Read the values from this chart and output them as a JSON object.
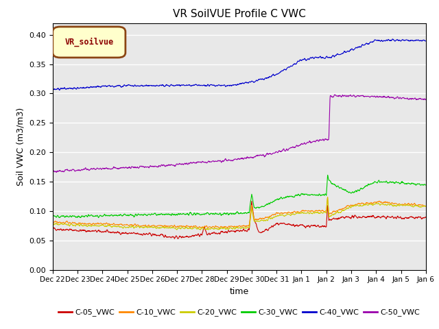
{
  "title": "VR SoilVUE Profile C VWC",
  "xlabel": "time",
  "ylabel": "Soil VWC (m3/m3)",
  "ylim": [
    0.0,
    0.42
  ],
  "yticks": [
    0.0,
    0.05,
    0.1,
    0.15,
    0.2,
    0.25,
    0.3,
    0.35,
    0.4
  ],
  "background_color": "#e8e8e8",
  "legend_label": "VR_soilvue",
  "legend_box_color": "#ffffcc",
  "legend_box_edge": "#8B4513",
  "series_colors": {
    "C-05_VWC": "#cc0000",
    "C-10_VWC": "#ff8800",
    "C-20_VWC": "#cccc00",
    "C-30_VWC": "#00cc00",
    "C-40_VWC": "#0000cc",
    "C-50_VWC": "#9900aa"
  },
  "xticklabels": [
    "Dec 22",
    "Dec 23",
    "Dec 24",
    "Dec 25",
    "Dec 26",
    "Dec 27",
    "Dec 28",
    "Dec 29",
    "Dec 30",
    "Dec 31",
    "Jan 1",
    "Jan 2",
    "Jan 3",
    "Jan 4",
    "Jan 5",
    "Jan 6"
  ]
}
